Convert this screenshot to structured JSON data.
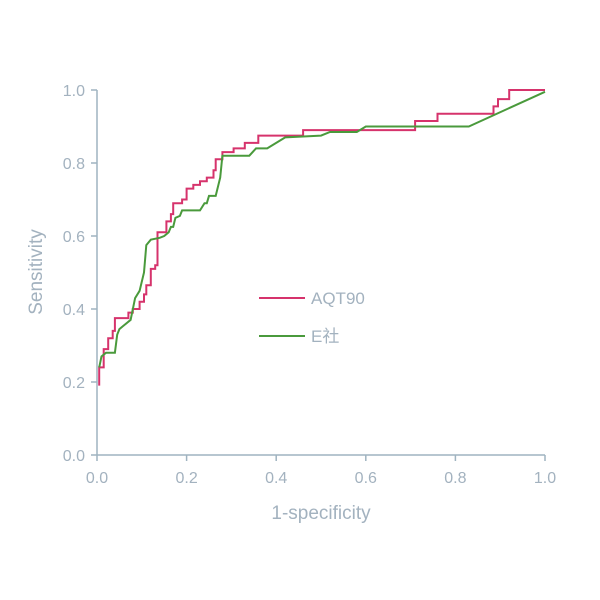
{
  "chart_data": {
    "type": "line",
    "xlabel": "1-specificity",
    "ylabel": "Sensitivity",
    "xlim": [
      0,
      1
    ],
    "ylim": [
      0,
      1
    ],
    "xticks": [
      "0.0",
      "0.2",
      "0.4",
      "0.6",
      "0.8",
      "1.0"
    ],
    "yticks": [
      "0.0",
      "0.2",
      "0.4",
      "0.6",
      "0.8",
      "1.0"
    ],
    "grid": false,
    "legend_position": "center",
    "series": [
      {
        "name": "AQT90",
        "color": "#d6336c",
        "points": [
          [
            0.005,
            0.19
          ],
          [
            0.005,
            0.24
          ],
          [
            0.015,
            0.24
          ],
          [
            0.015,
            0.29
          ],
          [
            0.025,
            0.29
          ],
          [
            0.025,
            0.32
          ],
          [
            0.035,
            0.32
          ],
          [
            0.035,
            0.34
          ],
          [
            0.04,
            0.34
          ],
          [
            0.04,
            0.375
          ],
          [
            0.07,
            0.375
          ],
          [
            0.07,
            0.39
          ],
          [
            0.08,
            0.39
          ],
          [
            0.08,
            0.4
          ],
          [
            0.095,
            0.4
          ],
          [
            0.095,
            0.42
          ],
          [
            0.105,
            0.42
          ],
          [
            0.105,
            0.44
          ],
          [
            0.11,
            0.44
          ],
          [
            0.11,
            0.465
          ],
          [
            0.12,
            0.465
          ],
          [
            0.12,
            0.51
          ],
          [
            0.13,
            0.51
          ],
          [
            0.13,
            0.52
          ],
          [
            0.135,
            0.52
          ],
          [
            0.135,
            0.61
          ],
          [
            0.155,
            0.61
          ],
          [
            0.155,
            0.64
          ],
          [
            0.165,
            0.64
          ],
          [
            0.165,
            0.66
          ],
          [
            0.17,
            0.66
          ],
          [
            0.17,
            0.69
          ],
          [
            0.19,
            0.69
          ],
          [
            0.19,
            0.7
          ],
          [
            0.2,
            0.7
          ],
          [
            0.2,
            0.73
          ],
          [
            0.215,
            0.73
          ],
          [
            0.215,
            0.74
          ],
          [
            0.23,
            0.74
          ],
          [
            0.23,
            0.75
          ],
          [
            0.245,
            0.75
          ],
          [
            0.245,
            0.76
          ],
          [
            0.26,
            0.76
          ],
          [
            0.26,
            0.78
          ],
          [
            0.265,
            0.78
          ],
          [
            0.265,
            0.81
          ],
          [
            0.28,
            0.81
          ],
          [
            0.28,
            0.83
          ],
          [
            0.305,
            0.83
          ],
          [
            0.305,
            0.84
          ],
          [
            0.33,
            0.84
          ],
          [
            0.33,
            0.855
          ],
          [
            0.36,
            0.855
          ],
          [
            0.36,
            0.875
          ],
          [
            0.46,
            0.875
          ],
          [
            0.46,
            0.89
          ],
          [
            0.71,
            0.89
          ],
          [
            0.71,
            0.915
          ],
          [
            0.76,
            0.915
          ],
          [
            0.76,
            0.935
          ],
          [
            0.885,
            0.935
          ],
          [
            0.885,
            0.955
          ],
          [
            0.895,
            0.955
          ],
          [
            0.895,
            0.975
          ],
          [
            0.92,
            0.975
          ],
          [
            0.92,
            1.0
          ],
          [
            1.0,
            1.0
          ]
        ]
      },
      {
        "name": "E社",
        "color": "#4a9a3c",
        "points": [
          [
            0.005,
            0.24
          ],
          [
            0.01,
            0.27
          ],
          [
            0.02,
            0.28
          ],
          [
            0.04,
            0.28
          ],
          [
            0.045,
            0.33
          ],
          [
            0.05,
            0.345
          ],
          [
            0.06,
            0.355
          ],
          [
            0.075,
            0.37
          ],
          [
            0.085,
            0.43
          ],
          [
            0.095,
            0.45
          ],
          [
            0.105,
            0.5
          ],
          [
            0.11,
            0.575
          ],
          [
            0.12,
            0.59
          ],
          [
            0.14,
            0.595
          ],
          [
            0.15,
            0.6
          ],
          [
            0.16,
            0.61
          ],
          [
            0.165,
            0.625
          ],
          [
            0.17,
            0.625
          ],
          [
            0.175,
            0.65
          ],
          [
            0.185,
            0.655
          ],
          [
            0.19,
            0.67
          ],
          [
            0.23,
            0.67
          ],
          [
            0.24,
            0.69
          ],
          [
            0.245,
            0.69
          ],
          [
            0.25,
            0.71
          ],
          [
            0.265,
            0.71
          ],
          [
            0.275,
            0.76
          ],
          [
            0.28,
            0.82
          ],
          [
            0.34,
            0.82
          ],
          [
            0.355,
            0.84
          ],
          [
            0.38,
            0.84
          ],
          [
            0.42,
            0.87
          ],
          [
            0.5,
            0.875
          ],
          [
            0.52,
            0.885
          ],
          [
            0.58,
            0.885
          ],
          [
            0.6,
            0.9
          ],
          [
            0.83,
            0.9
          ],
          [
            1.0,
            0.995
          ]
        ]
      }
    ]
  }
}
